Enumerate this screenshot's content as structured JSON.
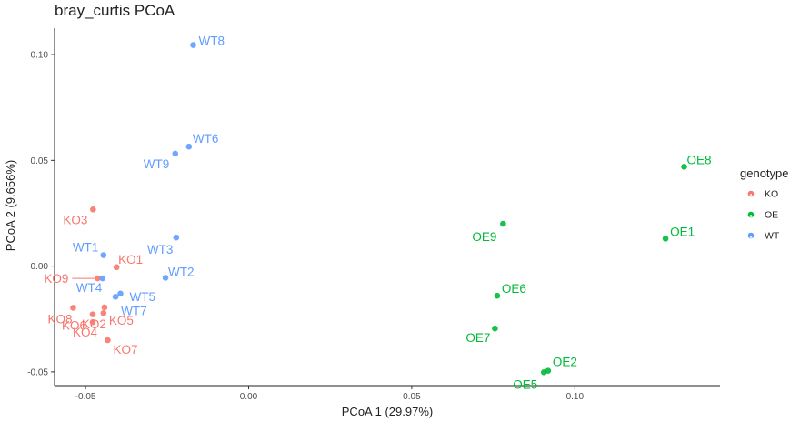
{
  "chart_data": {
    "type": "scatter",
    "title": "bray_curtis PCoA",
    "xlabel": "PCoA 1 (29.97%)",
    "ylabel": "PCoA 2 (9.656%)",
    "xlim": [
      -0.0595,
      0.1445
    ],
    "ylim": [
      -0.0565,
      0.1125
    ],
    "x_ticks": [
      -0.05,
      0.0,
      0.05,
      0.1
    ],
    "x_tick_labels": [
      "-0.05",
      "0.00",
      "0.05",
      "0.10"
    ],
    "y_ticks": [
      -0.05,
      0.0,
      0.05,
      0.1
    ],
    "y_tick_labels": [
      "-0.05",
      "0.00",
      "0.05",
      "0.10"
    ],
    "grid": false,
    "legend": {
      "title": "genotype",
      "position": "right"
    },
    "colors": {
      "KO": "#F8766D",
      "OE": "#00BA38",
      "WT": "#619CFF"
    },
    "series": [
      {
        "name": "KO",
        "points": [
          {
            "label": "KO1",
            "x": -0.0405,
            "y": -0.0005
          },
          {
            "label": "KO2",
            "x": -0.0445,
            "y": -0.0222
          },
          {
            "label": "KO3",
            "x": -0.0477,
            "y": 0.0268
          },
          {
            "label": "KO4",
            "x": -0.0478,
            "y": -0.0265
          },
          {
            "label": "KO5",
            "x": -0.0442,
            "y": -0.0195
          },
          {
            "label": "KO6",
            "x": -0.0478,
            "y": -0.0228
          },
          {
            "label": "KO7",
            "x": -0.0432,
            "y": -0.035
          },
          {
            "label": "KO8",
            "x": -0.0538,
            "y": -0.0197
          },
          {
            "label": "KO9",
            "x": -0.0463,
            "y": -0.0058
          }
        ]
      },
      {
        "name": "OE",
        "points": [
          {
            "label": "OE1",
            "x": 0.1278,
            "y": 0.013
          },
          {
            "label": "OE2",
            "x": 0.0918,
            "y": -0.0495
          },
          {
            "label": "OE5",
            "x": 0.0905,
            "y": -0.0502
          },
          {
            "label": "OE6",
            "x": 0.0762,
            "y": -0.014
          },
          {
            "label": "OE7",
            "x": 0.0755,
            "y": -0.0295
          },
          {
            "label": "OE8",
            "x": 0.1335,
            "y": 0.047
          },
          {
            "label": "OE9",
            "x": 0.078,
            "y": 0.02
          }
        ]
      },
      {
        "name": "WT",
        "points": [
          {
            "label": "WT1",
            "x": -0.0445,
            "y": 0.0052
          },
          {
            "label": "WT2",
            "x": -0.0255,
            "y": -0.0055
          },
          {
            "label": "WT3",
            "x": -0.0222,
            "y": 0.0135
          },
          {
            "label": "WT4",
            "x": -0.0448,
            "y": -0.0058
          },
          {
            "label": "WT5",
            "x": -0.0393,
            "y": -0.013
          },
          {
            "label": "WT6",
            "x": -0.0183,
            "y": 0.0565
          },
          {
            "label": "WT7",
            "x": -0.0408,
            "y": -0.0145
          },
          {
            "label": "WT8",
            "x": -0.017,
            "y": 0.1045
          },
          {
            "label": "WT9",
            "x": -0.0225,
            "y": 0.0532
          }
        ]
      }
    ]
  }
}
